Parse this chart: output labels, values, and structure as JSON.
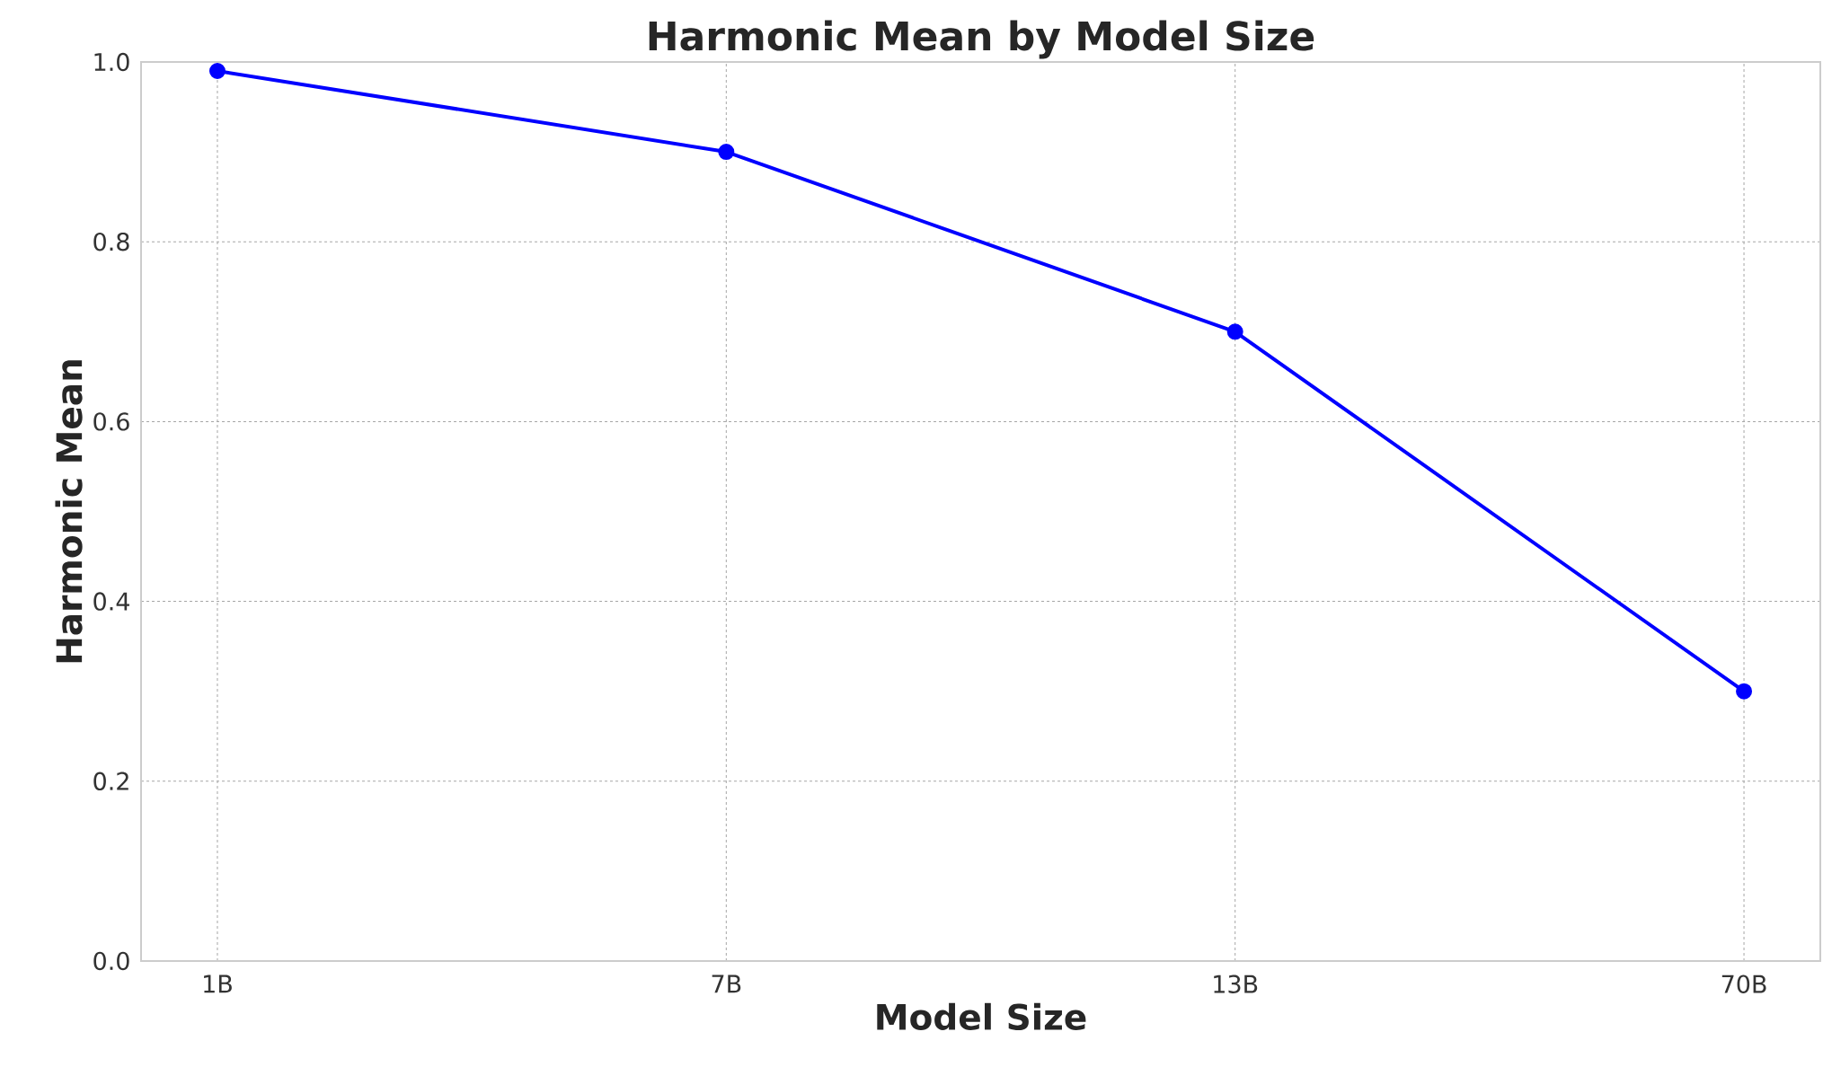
{
  "chart_data": {
    "type": "line",
    "title": "Harmonic Mean by Model Size",
    "xlabel": "Model Size",
    "ylabel": "Harmonic Mean",
    "categories": [
      "1B",
      "7B",
      "13B",
      "70B"
    ],
    "series": [
      {
        "color": "#0000ff",
        "values": [
          0.99,
          0.9,
          0.7,
          0.3
        ]
      }
    ],
    "ylim": [
      0,
      1
    ],
    "yticks": [
      {
        "value": 0,
        "label": "0.0"
      },
      {
        "value": 0.2,
        "label": "0.2"
      },
      {
        "value": 0.4,
        "label": "0.4"
      },
      {
        "value": 0.6,
        "label": "0.6"
      },
      {
        "value": 0.8,
        "label": "0.8"
      },
      {
        "value": 1,
        "label": "1.0"
      }
    ],
    "grid": true,
    "marker": "circle",
    "line_style": "solid",
    "legend": false
  }
}
